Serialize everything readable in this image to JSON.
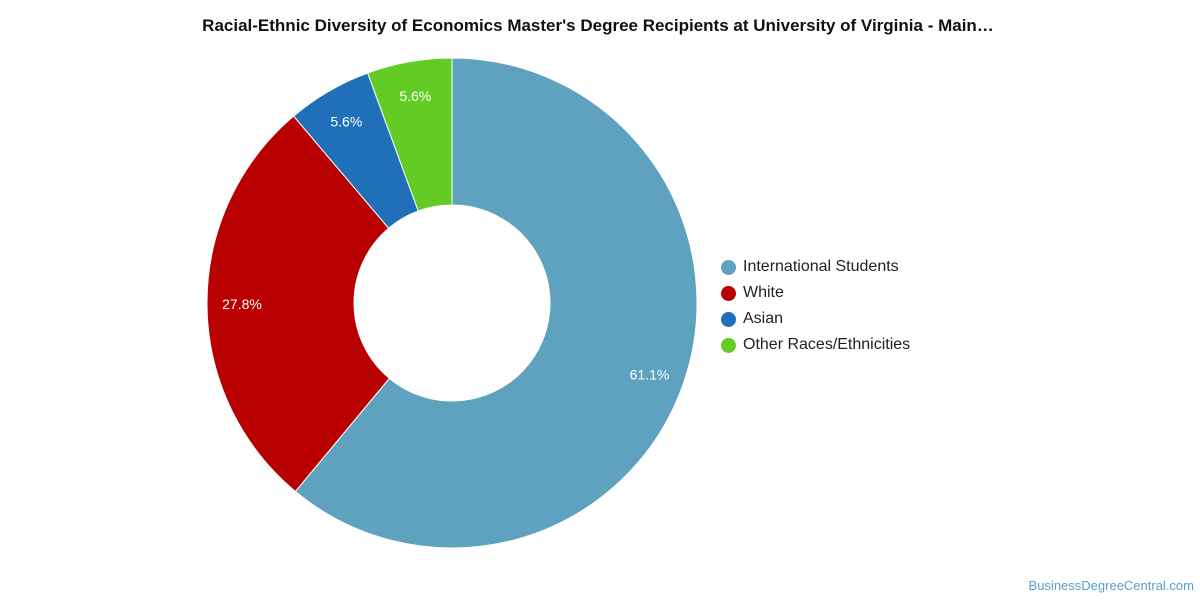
{
  "chart_data": {
    "type": "pie",
    "title": "Racial-Ethnic Diversity of Economics Master's Degree Recipients at University of Virginia - Main…",
    "categories": [
      "International Students",
      "White",
      "Asian",
      "Other Races/Ethnicities"
    ],
    "values": [
      61.1,
      27.8,
      5.6,
      5.6
    ],
    "value_labels": [
      "61.1%",
      "27.8%",
      "5.6%",
      "5.6%"
    ],
    "colors": [
      "#5ea2bf",
      "#b80000",
      "#1f70b8",
      "#62cc24"
    ],
    "donut": true,
    "legend_position": "right"
  },
  "source": "BusinessDegreeCentral.com"
}
